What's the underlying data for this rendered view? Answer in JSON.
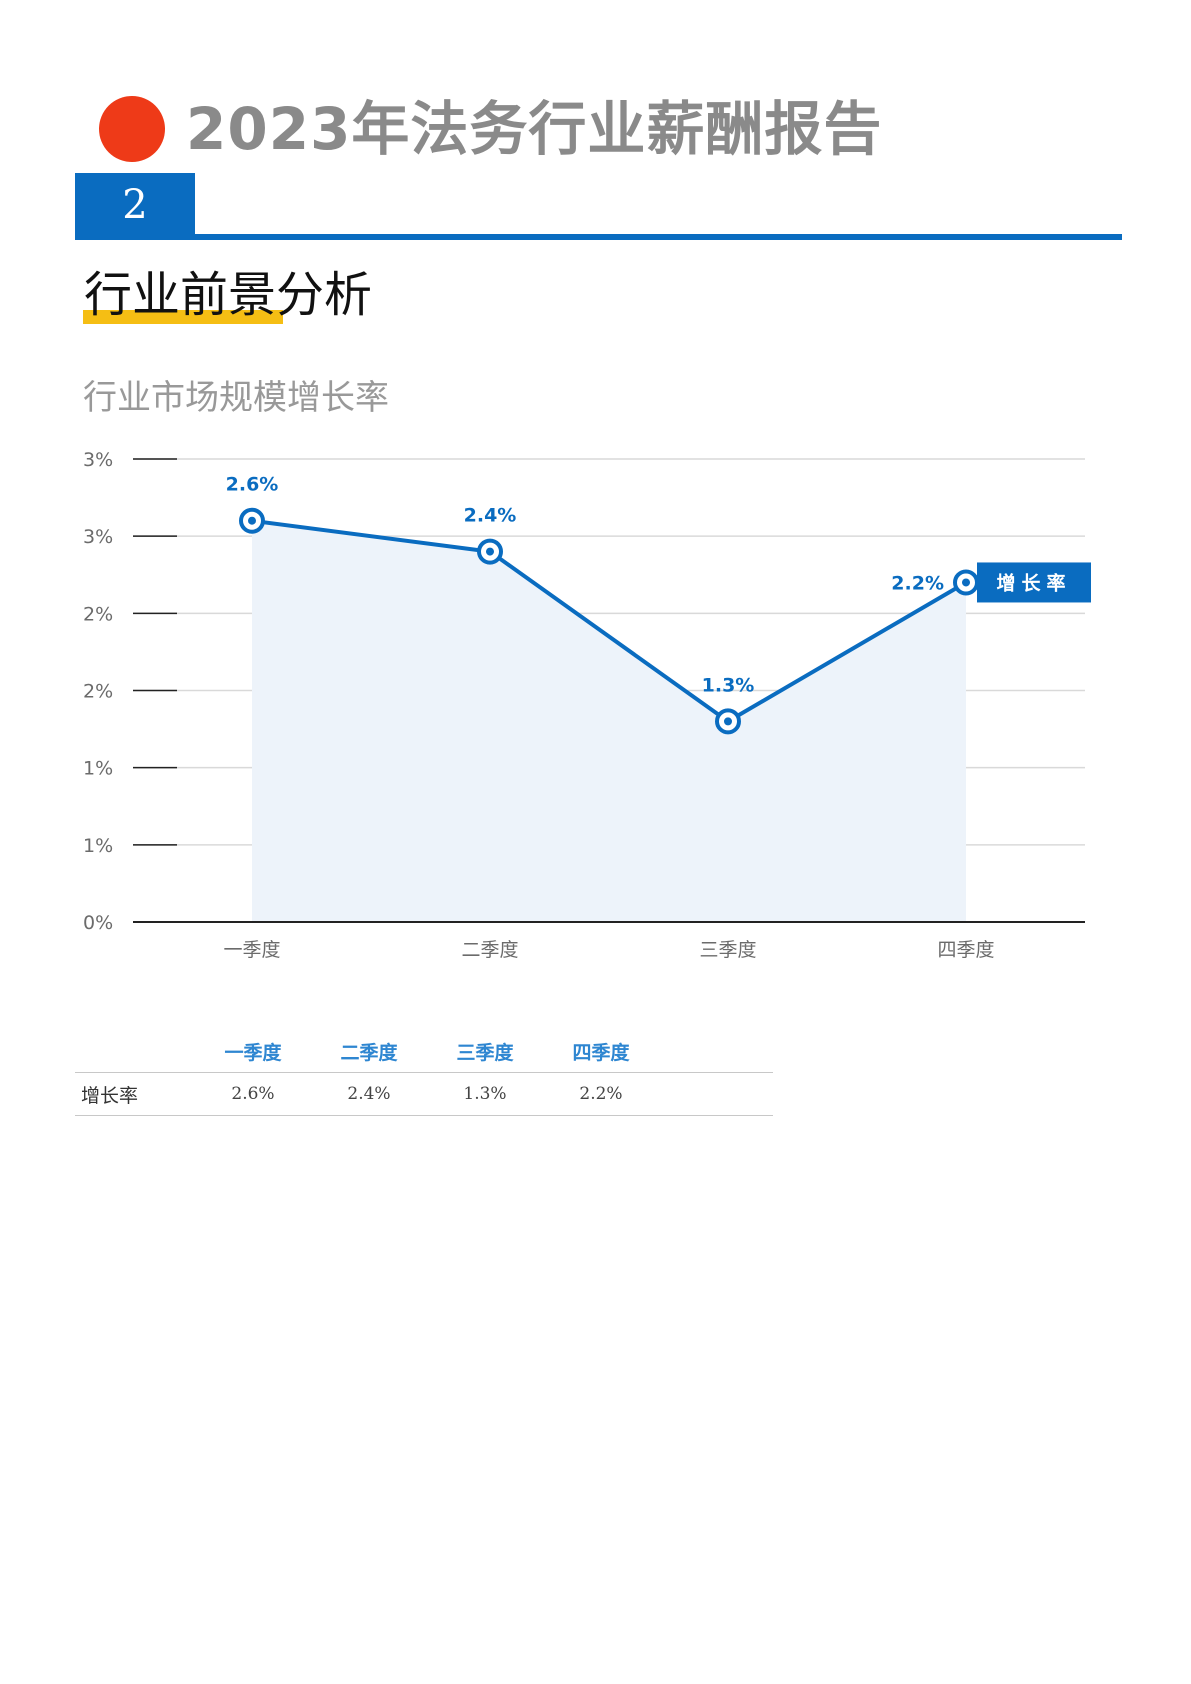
{
  "report_title": "2023年法务行业薪酬报告",
  "section": {
    "number": "2",
    "heading": "行业前景分析"
  },
  "chart_title": "行业市场规模增长率",
  "chart_data": {
    "type": "area",
    "categories": [
      "一季度",
      "二季度",
      "三季度",
      "四季度"
    ],
    "series": [
      {
        "name": "增长率",
        "values": [
          2.6,
          2.4,
          1.3,
          2.2
        ],
        "labels": [
          "2.6%",
          "2.4%",
          "1.3%",
          "2.2%"
        ]
      }
    ],
    "y_ticks": [
      {
        "value": 0,
        "label": "0%"
      },
      {
        "value": 0.5,
        "label": "1%"
      },
      {
        "value": 1.0,
        "label": "1%"
      },
      {
        "value": 1.5,
        "label": "2%"
      },
      {
        "value": 2.0,
        "label": "2%"
      },
      {
        "value": 2.5,
        "label": "3%"
      },
      {
        "value": 3.0,
        "label": "3%"
      }
    ],
    "ylim": [
      0,
      3
    ],
    "grid": true,
    "legend": "right",
    "colors": {
      "line": "#0a6cc0",
      "fill": "#edf3fa",
      "grid": "#d9d9d9",
      "axis": "#222222"
    }
  },
  "table": {
    "headers": [
      "",
      "一季度",
      "二季度",
      "三季度",
      "四季度",
      ""
    ],
    "rows": [
      {
        "label": "增长率",
        "values": [
          "2.6%",
          "2.4%",
          "1.3%",
          "2.2%"
        ]
      }
    ]
  },
  "colors": {
    "accent_blue": "#0a6cc0",
    "title_dot": "#ee3a18",
    "highlight": "#f5be14",
    "title_gray": "#8a8a8a"
  }
}
